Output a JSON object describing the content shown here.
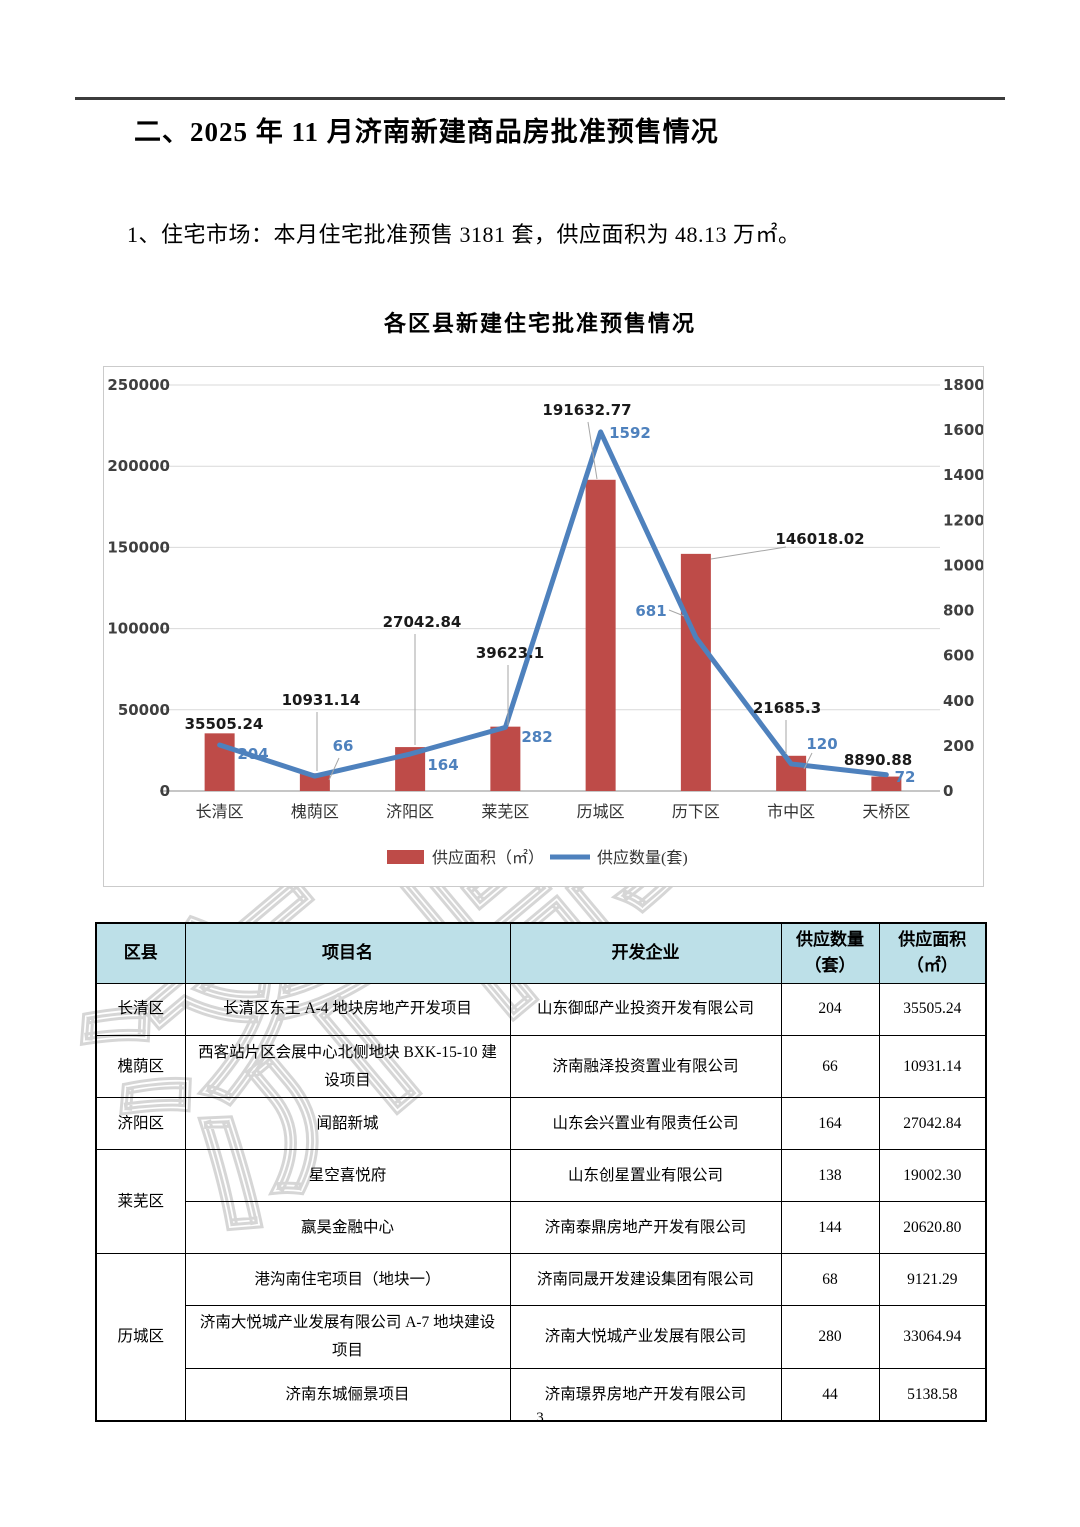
{
  "document": {
    "section_title": "二、2025 年 11 月济南新建商品房批准预售情况",
    "intro": "1、住宅市场：本月住宅批准预售 3181 套，供应面积为 48.13 万㎡。",
    "page_number": "3"
  },
  "watermark": {
    "text": "济南"
  },
  "colors": {
    "bar": "#BE4B48",
    "line": "#4E81BD",
    "grid": "#D9D9D9",
    "axis_line": "#8C8C8C",
    "leader": "#A6A6A6",
    "axis_text": "#3F3F3F",
    "bar_label_text": "#1A1A1A",
    "table_header_bg": "#BDE0E8",
    "rule": "#3C3C3C"
  },
  "chart_data": {
    "type": "bar+line",
    "title": "各区县新建住宅批准预售情况",
    "categories": [
      "长清区",
      "槐荫区",
      "济阳区",
      "莱芜区",
      "历城区",
      "历下区",
      "市中区",
      "天桥区"
    ],
    "series": [
      {
        "name": "供应面积（㎡）",
        "type": "bar",
        "axis": "left",
        "color": "#BE4B48",
        "values": [
          35505.24,
          10931.14,
          27042.84,
          39623.1,
          191632.77,
          146018.02,
          21685.3,
          8890.88
        ],
        "labels": [
          "35505.24",
          "10931.14",
          "27042.84",
          "39623.1",
          "191632.77",
          "146018.02",
          "21685.3",
          "8890.88"
        ]
      },
      {
        "name": "供应数量(套)",
        "type": "line",
        "axis": "right",
        "color": "#4E81BD",
        "values": [
          204,
          66,
          164,
          282,
          1592,
          681,
          120,
          72
        ],
        "labels": [
          "204",
          "66",
          "164",
          "282",
          "1592",
          "681",
          "120",
          "72"
        ]
      }
    ],
    "left_axis": {
      "min": 0,
      "max": 250000,
      "step": 50000,
      "ticks": [
        "0",
        "50000",
        "100000",
        "150000",
        "200000",
        "250000"
      ]
    },
    "right_axis": {
      "min": 0,
      "max": 1800,
      "step": 200,
      "ticks": [
        "0",
        "200",
        "400",
        "600",
        "800",
        "1000",
        "1200",
        "1400",
        "1600",
        "1800"
      ]
    },
    "legend_position": "bottom",
    "grid": "horizontal"
  },
  "table": {
    "headers": [
      "区县",
      "项目名",
      "开发企业",
      "供应数量（套）",
      "供应面积（㎡）"
    ],
    "rows": [
      {
        "district": "长清区",
        "rowspan": 1,
        "project": "长清区东王 A-4 地块房地产开发项目",
        "developer": "山东御邸产业投资开发有限公司",
        "units": "204",
        "area": "35505.24"
      },
      {
        "district": "槐荫区",
        "rowspan": 1,
        "project": "西客站片区会展中心北侧地块 BXK-15-10 建设项目",
        "developer": "济南融泽投资置业有限公司",
        "units": "66",
        "area": "10931.14"
      },
      {
        "district": "济阳区",
        "rowspan": 1,
        "project": "闻韶新城",
        "developer": "山东会兴置业有限责任公司",
        "units": "164",
        "area": "27042.84"
      },
      {
        "district": "莱芜区",
        "rowspan": 2,
        "project": "星空喜悦府",
        "developer": "山东创星置业有限公司",
        "units": "138",
        "area": "19002.30"
      },
      {
        "district": null,
        "project": "嬴昊金融中心",
        "developer": "济南泰鼎房地产开发有限公司",
        "units": "144",
        "area": "20620.80"
      },
      {
        "district": "历城区",
        "rowspan": 3,
        "project": "港沟南住宅项目（地块一）",
        "developer": "济南同晟开发建设集团有限公司",
        "units": "68",
        "area": "9121.29"
      },
      {
        "district": null,
        "project": "济南大悦城产业发展有限公司 A-7 地块建设项目",
        "developer": "济南大悦城产业发展有限公司",
        "units": "280",
        "area": "33064.94"
      },
      {
        "district": null,
        "project": "济南东城俪景项目",
        "developer": "济南璟界房地产开发有限公司",
        "units": "44",
        "area": "5138.58"
      }
    ]
  }
}
